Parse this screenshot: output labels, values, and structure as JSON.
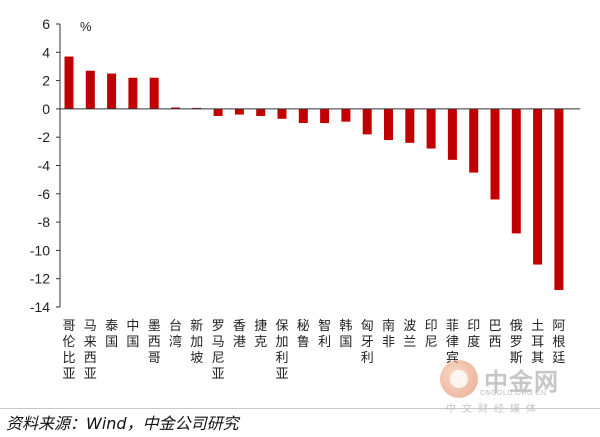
{
  "chart_data": {
    "type": "bar",
    "unit": "%",
    "ylim": [
      -14,
      6
    ],
    "yticks": [
      6,
      4,
      2,
      0,
      -2,
      -4,
      -6,
      -8,
      -10,
      -12,
      -14
    ],
    "grid": false,
    "bar_color": "#c00000",
    "categories": [
      "哥伦比亚",
      "马来西亚",
      "泰国",
      "中国",
      "墨西哥",
      "台湾",
      "新加坡",
      "罗马尼亚",
      "香港",
      "捷克",
      "保加利亚",
      "秘鲁",
      "智利",
      "韩国",
      "匈牙利",
      "南非",
      "波兰",
      "印尼",
      "菲律宾",
      "印度",
      "巴西",
      "俄罗斯",
      "土耳其",
      "阿根廷"
    ],
    "values": [
      3.7,
      2.7,
      2.5,
      2.2,
      2.2,
      0.1,
      0.0,
      -0.5,
      -0.4,
      -0.5,
      -0.7,
      -1.0,
      -1.0,
      -0.9,
      -1.8,
      -2.2,
      -2.4,
      -2.8,
      -3.6,
      -4.5,
      -6.4,
      -8.8,
      -11.0,
      -12.8
    ]
  },
  "footer": {
    "source": "资料来源：Wind，中金公司研究"
  },
  "watermark": {
    "name": "中金网",
    "url": "CNGOLD.ORG.CN",
    "tagline": "中文财经媒体"
  }
}
